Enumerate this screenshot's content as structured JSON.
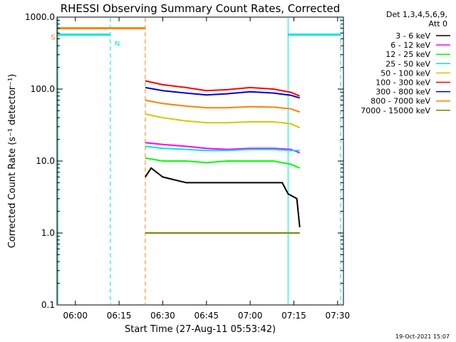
{
  "chart_data": {
    "type": "line",
    "title": "RHESSI Observing Summary Count Rates, Corrected",
    "xlabel": "Start Time (27-Aug-11 05:53:42)",
    "ylabel": "Corrected Count Rate (s⁻¹ detector⁻¹)",
    "y_scale": "log",
    "ylim": [
      0.1,
      1000.0
    ],
    "xlim": [
      "05:53:42",
      "07:32:00"
    ],
    "x_ticks": [
      "06:00",
      "06:15",
      "06:30",
      "06:45",
      "07:00",
      "07:15",
      "07:30"
    ],
    "y_ticks": [
      "0.1",
      "1.0",
      "10.0",
      "100.0",
      "1000.0"
    ],
    "grid": false,
    "legend": {
      "placement": "top-right",
      "header": [
        "Det 1,3,4,5,6,9,",
        "Att 0"
      ]
    },
    "timestamp": "19-Oct-2021 15:07",
    "series": [
      {
        "name": "3 - 6 keV",
        "color": "#000000",
        "x": [
          "06:24",
          "06:26",
          "06:30",
          "06:38",
          "06:45",
          "06:52",
          "07:00",
          "07:08",
          "07:11",
          "07:13",
          "07:16",
          "07:17"
        ],
        "values": [
          6,
          8,
          6,
          5,
          5,
          5,
          5,
          5,
          5,
          3.5,
          3,
          1.2
        ]
      },
      {
        "name": "6 - 12 keV",
        "color": "#ff00ff",
        "x": [
          "06:24",
          "06:30",
          "06:38",
          "06:45",
          "06:52",
          "07:00",
          "07:08",
          "07:14",
          "07:17"
        ],
        "values": [
          18,
          17,
          16,
          15,
          14.5,
          15,
          15,
          14.5,
          13
        ]
      },
      {
        "name": "12 - 25 keV",
        "color": "#00ff00",
        "x": [
          "06:24",
          "06:30",
          "06:38",
          "06:45",
          "06:52",
          "07:00",
          "07:08",
          "07:14",
          "07:17"
        ],
        "values": [
          11,
          10,
          10,
          9.5,
          10,
          10,
          10,
          9,
          8
        ]
      },
      {
        "name": "25 - 50 keV",
        "color": "#00e5e5",
        "x": [
          "06:24",
          "06:30",
          "06:38",
          "06:45",
          "06:52",
          "07:00",
          "07:08",
          "07:14",
          "07:17"
        ],
        "values": [
          16,
          15,
          14.5,
          14,
          14,
          14.5,
          14.5,
          14,
          14
        ]
      },
      {
        "name": "50 - 100 keV",
        "color": "#d4c800",
        "x": [
          "06:24",
          "06:30",
          "06:38",
          "06:45",
          "06:52",
          "07:00",
          "07:08",
          "07:14",
          "07:17"
        ],
        "values": [
          45,
          40,
          36,
          34,
          34,
          35,
          35,
          33,
          29
        ]
      },
      {
        "name": "100 - 300 keV",
        "color": "#ff0000",
        "x": [
          "06:24",
          "06:30",
          "06:38",
          "06:45",
          "06:52",
          "07:00",
          "07:08",
          "07:14",
          "07:17"
        ],
        "values": [
          130,
          115,
          105,
          95,
          98,
          105,
          100,
          90,
          80
        ]
      },
      {
        "name": "300 - 800 keV",
        "color": "#0000d0",
        "x": [
          "06:24",
          "06:30",
          "06:38",
          "06:45",
          "06:52",
          "07:00",
          "07:08",
          "07:14",
          "07:17"
        ],
        "values": [
          105,
          95,
          88,
          83,
          86,
          92,
          88,
          82,
          75
        ]
      },
      {
        "name": "800 - 7000 keV",
        "color": "#ff8000",
        "x": [
          "06:24",
          "06:30",
          "06:38",
          "06:45",
          "06:52",
          "07:00",
          "07:08",
          "07:14",
          "07:17"
        ],
        "values": [
          70,
          63,
          58,
          55,
          55,
          57,
          56,
          53,
          48
        ]
      },
      {
        "name": "7000 - 15000 keV",
        "color": "#808000",
        "x": [
          "06:24",
          "06:30",
          "06:38",
          "06:45",
          "06:52",
          "07:00",
          "07:08",
          "07:14",
          "07:17"
        ],
        "values": [
          1,
          1,
          1,
          1,
          1,
          1,
          1,
          1,
          1
        ]
      }
    ],
    "flags": [
      {
        "name": "S",
        "color": "#ff8000",
        "value": 700,
        "x_start": "05:54",
        "x_end": "06:24",
        "marker_x": [
          "05:54",
          "06:24"
        ]
      },
      {
        "name": "N",
        "color": "#00e5e5",
        "value": 570,
        "x_start": "05:54",
        "x_end": "06:12",
        "marker_x": [
          "05:54",
          "06:12"
        ]
      },
      {
        "name": "",
        "color": "#00e5e5",
        "value": 570,
        "x_start": "07:13",
        "x_end": "07:31",
        "marker_x": [
          "07:13",
          "07:31"
        ]
      }
    ]
  }
}
